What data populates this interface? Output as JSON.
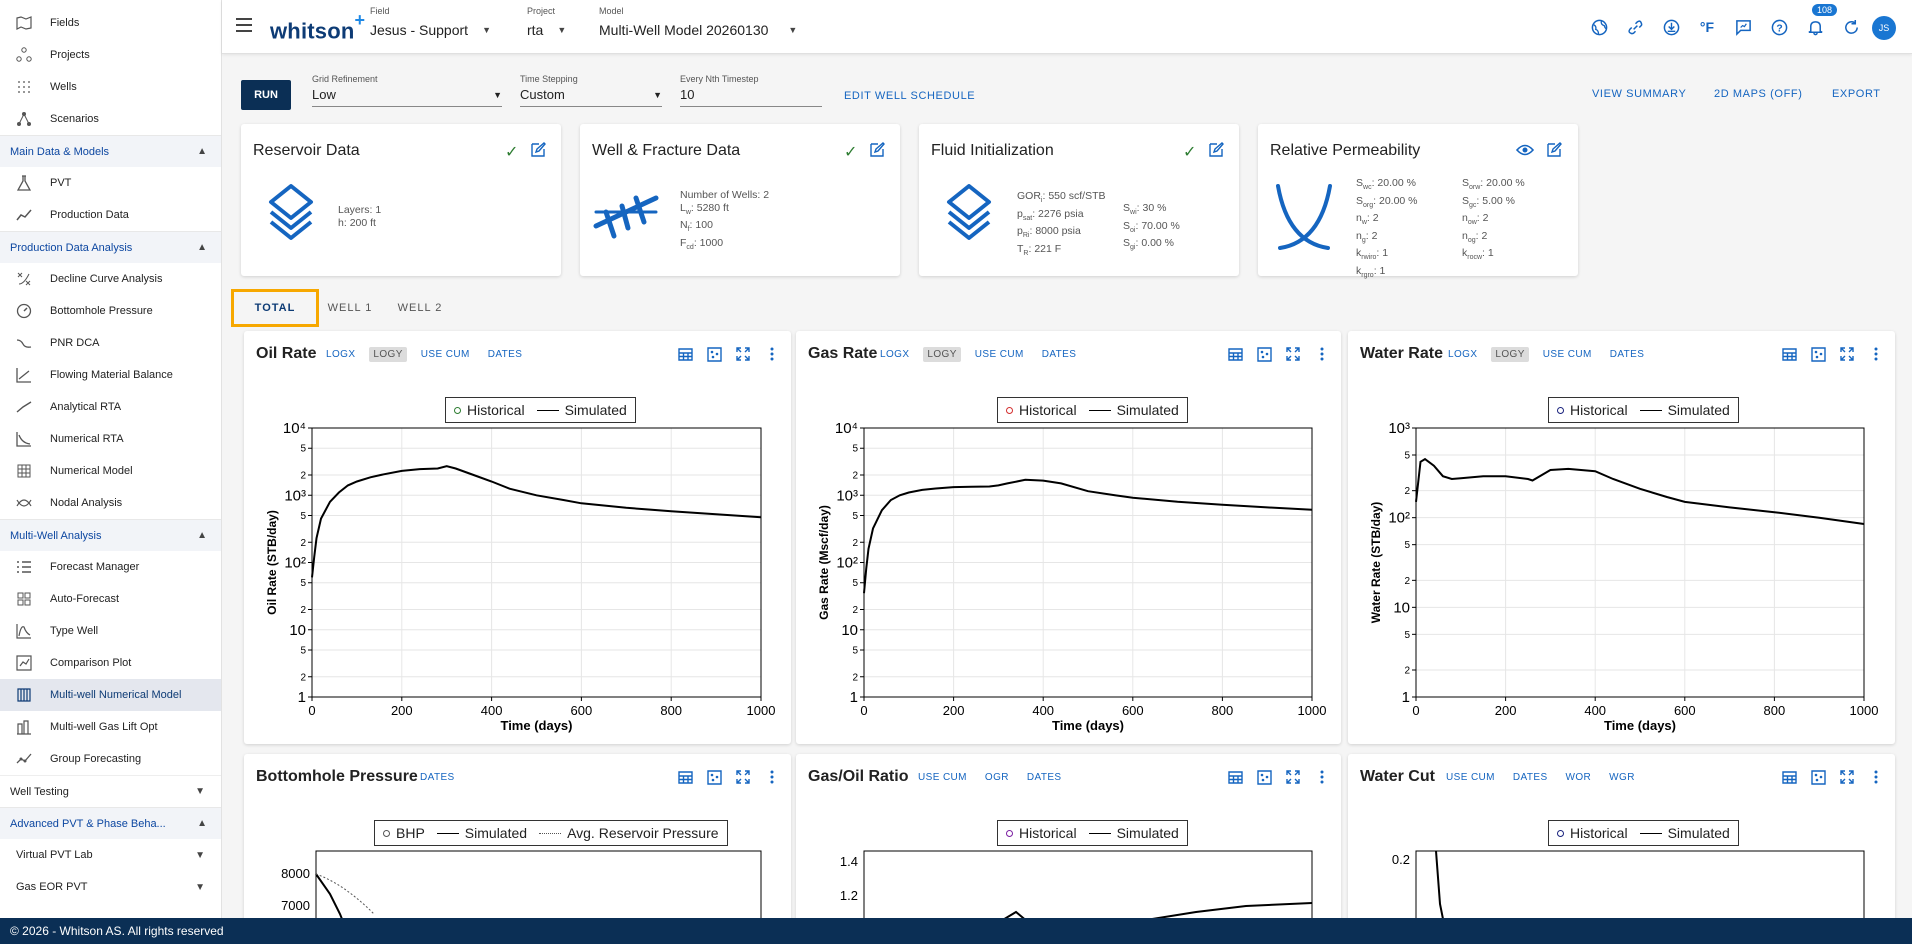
{
  "sidebar": {
    "top_items": [
      {
        "label": "Fields",
        "icon": "map-icon"
      },
      {
        "label": "Projects",
        "icon": "projects-icon"
      },
      {
        "label": "Wells",
        "icon": "wells-icon"
      },
      {
        "label": "Scenarios",
        "icon": "scenarios-icon"
      }
    ],
    "sections": [
      {
        "label": "Main Data & Models",
        "items": [
          {
            "label": "PVT",
            "icon": "flask-icon"
          },
          {
            "label": "Production Data",
            "icon": "chart-line-icon"
          }
        ]
      },
      {
        "label": "Production Data Analysis",
        "items": [
          {
            "label": "Decline Curve Analysis",
            "icon": "decline-icon"
          },
          {
            "label": "Bottomhole Pressure",
            "icon": "gauge-icon"
          },
          {
            "label": "PNR DCA",
            "icon": "pnr-icon"
          },
          {
            "label": "Flowing Material Balance",
            "icon": "fmb-icon"
          },
          {
            "label": "Analytical RTA",
            "icon": "analytical-icon"
          },
          {
            "label": "Numerical RTA",
            "icon": "numerical-rta-icon"
          },
          {
            "label": "Numerical Model",
            "icon": "grid-icon"
          },
          {
            "label": "Nodal Analysis",
            "icon": "nodal-icon"
          }
        ]
      },
      {
        "label": "Multi-Well Analysis",
        "items": [
          {
            "label": "Forecast Manager",
            "icon": "list-icon"
          },
          {
            "label": "Auto-Forecast",
            "icon": "auto-forecast-icon"
          },
          {
            "label": "Type Well",
            "icon": "type-well-icon"
          },
          {
            "label": "Comparison Plot",
            "icon": "comparison-icon"
          },
          {
            "label": "Multi-well Numerical Model",
            "icon": "multiwell-icon",
            "active": true
          },
          {
            "label": "Multi-well Gas Lift Opt",
            "icon": "gas-lift-icon"
          },
          {
            "label": "Group Forecasting",
            "icon": "group-icon"
          }
        ]
      }
    ],
    "collapsed": [
      {
        "label": "Well Testing"
      }
    ],
    "advanced": {
      "label": "Advanced PVT & Phase Beha...",
      "subs": [
        {
          "label": "Virtual PVT Lab"
        },
        {
          "label": "Gas EOR PVT"
        }
      ]
    }
  },
  "header": {
    "logo": "whitson",
    "logo_plus": "+",
    "field": {
      "label": "Field",
      "value": "Jesus - Support"
    },
    "project": {
      "label": "Project",
      "value": "rta"
    },
    "model": {
      "label": "Model",
      "value": "Multi-Well Model 20260130"
    },
    "notification_count": "108",
    "temp_unit": "°F",
    "avatar": "JS"
  },
  "toolbar": {
    "run": "RUN",
    "grid": {
      "label": "Grid Refinement",
      "value": "Low"
    },
    "time": {
      "label": "Time Stepping",
      "value": "Custom"
    },
    "nth": {
      "label": "Every Nth Timestep",
      "value": "10"
    },
    "edit_schedule": "EDIT WELL SCHEDULE",
    "view_summary": "VIEW SUMMARY",
    "maps": "2D MAPS (OFF)",
    "export": "EXPORT"
  },
  "cards": {
    "reservoir": {
      "title": "Reservoir Data",
      "layers_label": "Layers:",
      "layers": "1",
      "h_label": "h:",
      "h": "200 ft"
    },
    "well": {
      "title": "Well & Fracture Data",
      "num_label": "Number of Wells:",
      "num": "2",
      "lw": "5280 ft",
      "nf": "100",
      "fcd": "1000"
    },
    "fluid": {
      "title": "Fluid Initialization",
      "gor": "550 scf/STB",
      "psat": "2276 psia",
      "pri": "8000 psia",
      "tr": "221 F",
      "swi": "30 %",
      "soi": "70.00 %",
      "sgi": "0.00 %"
    },
    "relperm": {
      "title": "Relative Permeability",
      "swc": "20.00 %",
      "sorw": "20.00 %",
      "sorg": "20.00 %",
      "sgc": "5.00 %",
      "nw": "2",
      "now": "2",
      "ng": "2",
      "nog": "2",
      "krwiro": "1",
      "krocw": "1",
      "krgro": "1"
    }
  },
  "tabs": [
    "TOTAL",
    "WELL 1",
    "WELL 2"
  ],
  "panels": {
    "oil": {
      "title": "Oil Rate",
      "opts": [
        "LOGX",
        "LOGY",
        "USE CUM",
        "DATES"
      ],
      "legend_hist": "Historical",
      "legend_sim": "Simulated",
      "ylabel": "Oil Rate (STB/day)",
      "xlabel": "Time (days)",
      "marker_color": "#2e7d32"
    },
    "gas": {
      "title": "Gas Rate",
      "opts": [
        "LOGX",
        "LOGY",
        "USE CUM",
        "DATES"
      ],
      "legend_hist": "Historical",
      "legend_sim": "Simulated",
      "ylabel": "Gas Rate (Mscf/day)",
      "xlabel": "Time (days)",
      "marker_color": "#d32f2f"
    },
    "water": {
      "title": "Water Rate",
      "opts": [
        "LOGX",
        "LOGY",
        "USE CUM",
        "DATES"
      ],
      "legend_hist": "Historical",
      "legend_sim": "Simulated",
      "ylabel": "Water Rate (STB/day)",
      "xlabel": "Time (days)",
      "marker_color": "#1a237e"
    },
    "bhp": {
      "title": "Bottomhole Pressure",
      "opts": [
        "DATES"
      ],
      "legend_hist": "BHP",
      "legend_sim": "Simulated",
      "legend_avg": "Avg. Reservoir Pressure"
    },
    "gor": {
      "title": "Gas/Oil Ratio",
      "opts": [
        "USE CUM",
        "OGR",
        "DATES"
      ],
      "legend_hist": "Historical",
      "legend_sim": "Simulated",
      "marker_color": "#7b1fa2"
    },
    "wcut": {
      "title": "Water Cut",
      "opts": [
        "USE CUM",
        "DATES",
        "WOR",
        "WGR"
      ],
      "legend_hist": "Historical",
      "legend_sim": "Simulated",
      "marker_color": "#1a237e"
    }
  },
  "chart_data": [
    {
      "type": "line",
      "name": "oil",
      "x": [
        0,
        5,
        10,
        20,
        40,
        60,
        80,
        100,
        130,
        160,
        200,
        240,
        280,
        300,
        320,
        360,
        400,
        440,
        500,
        560,
        600,
        700,
        800,
        900,
        1000
      ],
      "series": [
        {
          "name": "Simulated",
          "values": [
            60,
            120,
            230,
            450,
            800,
            1100,
            1400,
            1600,
            1850,
            2050,
            2300,
            2450,
            2500,
            2700,
            2500,
            2000,
            1600,
            1250,
            1000,
            850,
            760,
            650,
            580,
            520,
            470
          ]
        }
      ],
      "ylog": true,
      "ylim": [
        1,
        10000
      ],
      "xlim": [
        0,
        1000
      ],
      "yticks": [
        "1",
        "2",
        "5",
        "10",
        "2",
        "5",
        "10²",
        "2",
        "5",
        "10³",
        "2",
        "5",
        "10⁴"
      ],
      "xticks": [
        "0",
        "200",
        "400",
        "600",
        "800",
        "1000"
      ]
    },
    {
      "type": "line",
      "name": "gas",
      "x": [
        0,
        5,
        10,
        20,
        40,
        60,
        80,
        100,
        130,
        160,
        200,
        240,
        280,
        300,
        320,
        360,
        400,
        440,
        500,
        560,
        600,
        700,
        800,
        900,
        1000
      ],
      "series": [
        {
          "name": "Simulated",
          "values": [
            35,
            80,
            160,
            320,
            600,
            850,
            1000,
            1100,
            1200,
            1260,
            1320,
            1340,
            1350,
            1400,
            1500,
            1700,
            1650,
            1500,
            1150,
            1000,
            920,
            800,
            720,
            660,
            610
          ]
        }
      ],
      "ylog": true,
      "ylim": [
        1,
        10000
      ],
      "xlim": [
        0,
        1000
      ],
      "yticks": [
        "1",
        "2",
        "5",
        "10",
        "2",
        "5",
        "10²",
        "2",
        "5",
        "10³",
        "2",
        "5",
        "10⁴"
      ],
      "xticks": [
        "0",
        "200",
        "400",
        "600",
        "800",
        "1000"
      ]
    },
    {
      "type": "line",
      "name": "water",
      "x": [
        0,
        10,
        20,
        40,
        60,
        80,
        100,
        150,
        200,
        250,
        260,
        300,
        340,
        400,
        440,
        500,
        560,
        600,
        700,
        800,
        900,
        1000
      ],
      "series": [
        {
          "name": "Simulated",
          "values": [
            150,
            420,
            450,
            380,
            290,
            270,
            275,
            290,
            290,
            270,
            260,
            340,
            350,
            330,
            270,
            210,
            170,
            150,
            130,
            115,
            100,
            85
          ]
        }
      ],
      "ylog": true,
      "ylim": [
        1,
        1000
      ],
      "xlim": [
        0,
        1000
      ],
      "yticks": [
        "1",
        "2",
        "5",
        "10",
        "2",
        "5",
        "10²",
        "2",
        "5",
        "10³"
      ],
      "xticks": [
        "0",
        "200",
        "400",
        "600",
        "800",
        "1000"
      ]
    },
    {
      "type": "line",
      "name": "bhp",
      "yticks": [
        "8000",
        "7000"
      ],
      "series": [
        {
          "name": "Simulated"
        },
        {
          "name": "Avg. Reservoir Pressure"
        }
      ]
    },
    {
      "type": "line",
      "name": "gor",
      "yticks": [
        "1.4",
        "1.2"
      ],
      "series": [
        {
          "name": "Simulated"
        }
      ]
    },
    {
      "type": "line",
      "name": "wcut",
      "yticks": [
        "0.2"
      ],
      "series": [
        {
          "name": "Simulated"
        }
      ]
    }
  ],
  "footer": "© 2026 - Whitson AS. All rights reserved",
  "colors": {
    "navy": "#0b2f55",
    "accent": "#1565c0",
    "tab_highlight": "#f7a800",
    "check": "#2e7d32"
  }
}
